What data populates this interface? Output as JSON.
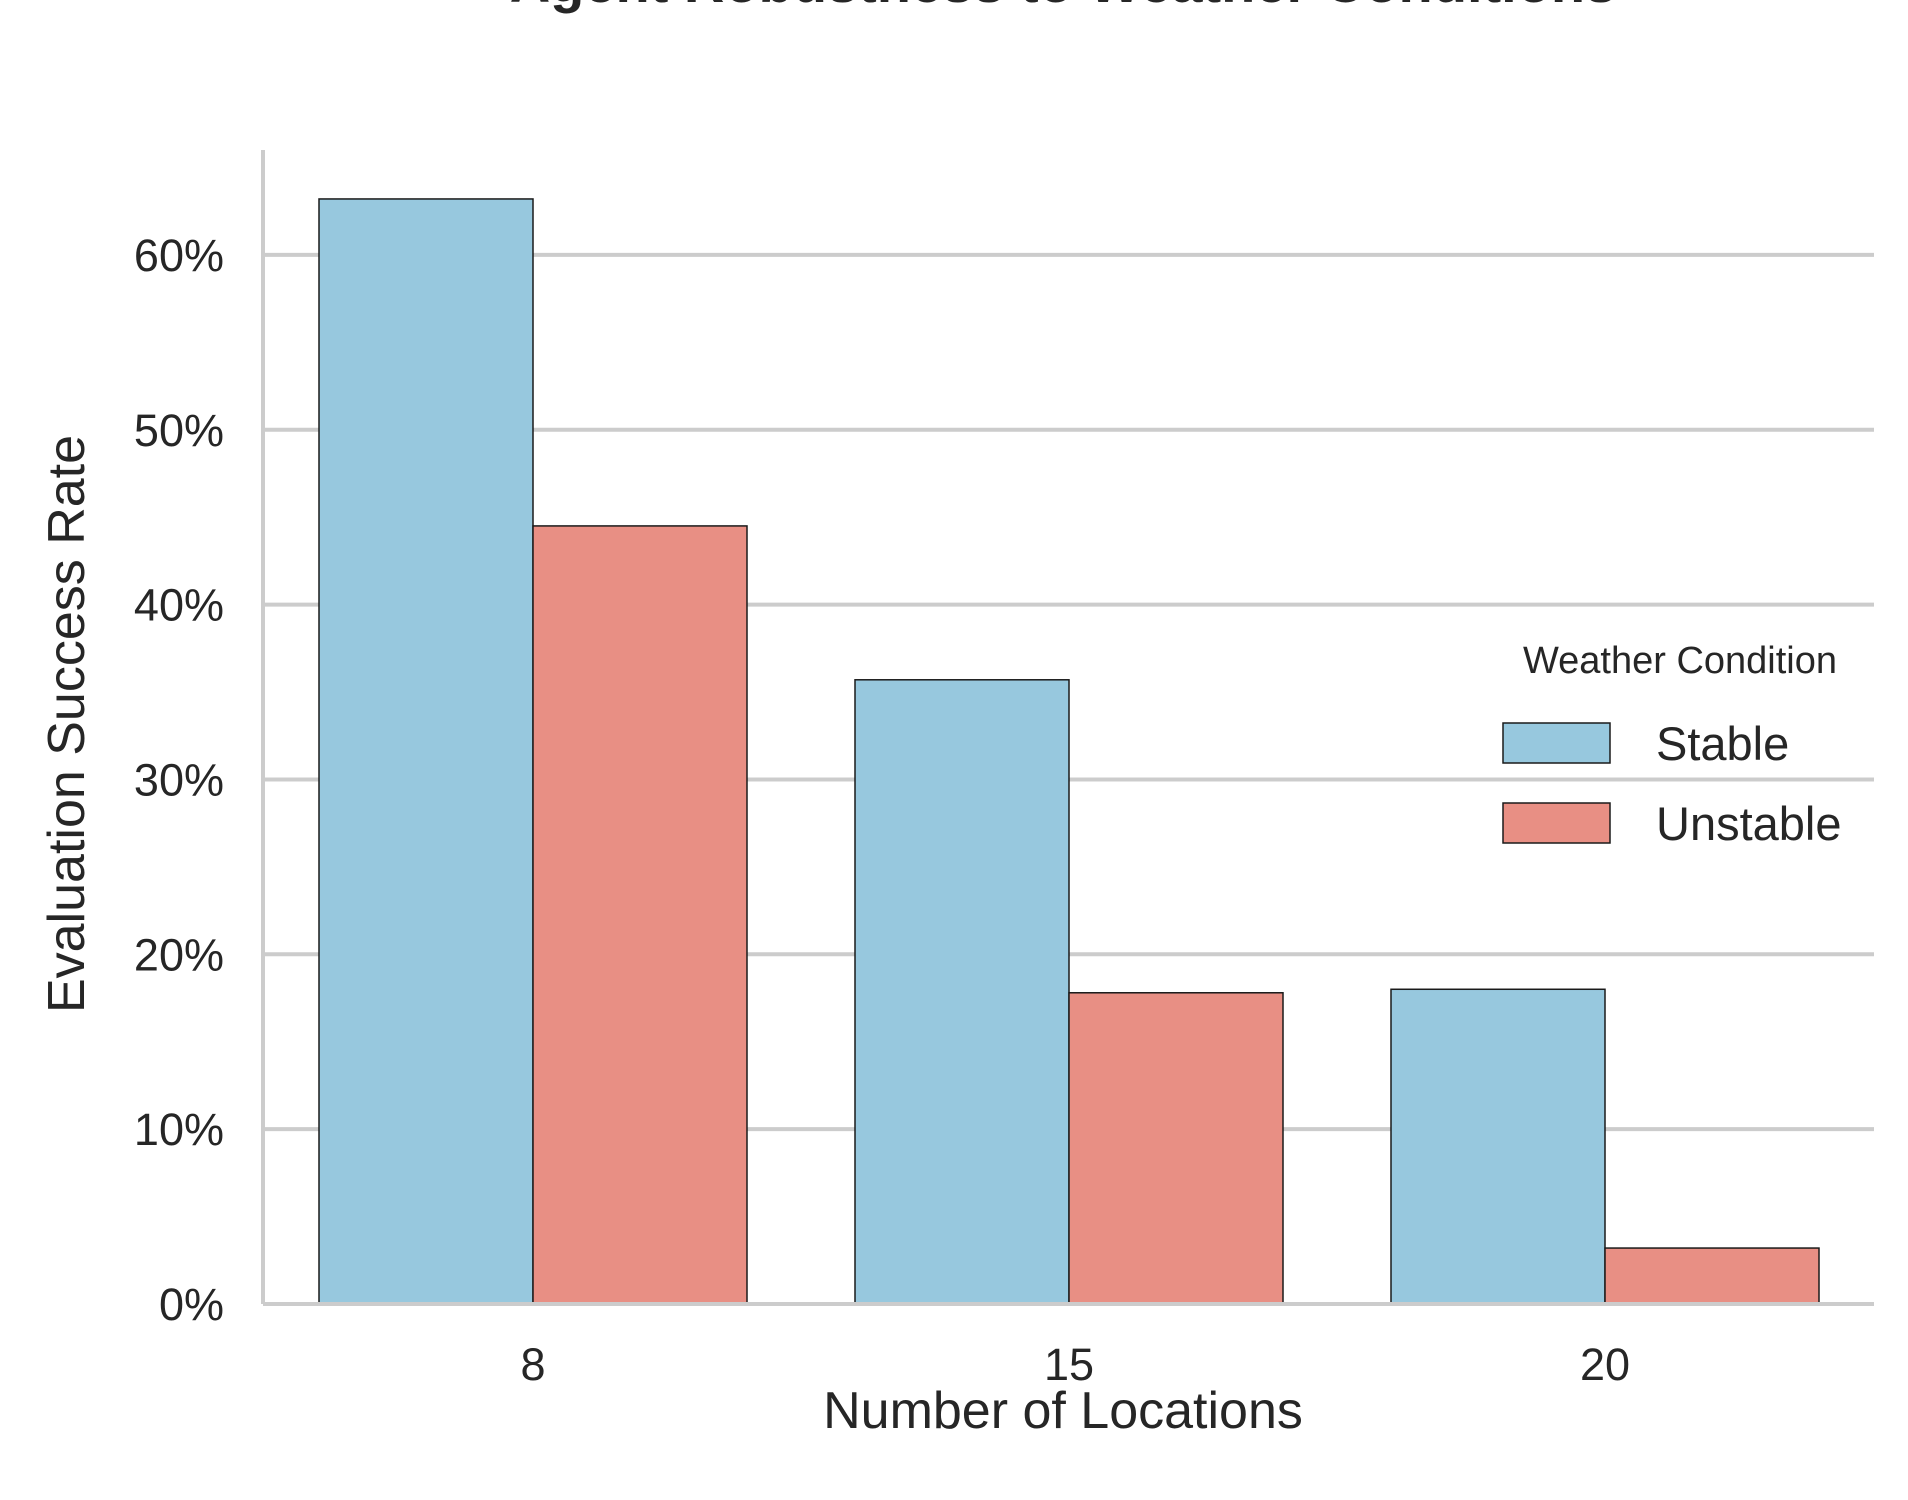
{
  "chart_data": {
    "type": "bar",
    "title": "Agent Robustness to Weather Conditions",
    "xlabel": "Number of Locations",
    "ylabel": "Evaluation Success Rate",
    "categories": [
      "8",
      "15",
      "20"
    ],
    "series": [
      {
        "name": "Stable",
        "color": "#97C8DE",
        "values": [
          0.632,
          0.357,
          0.18
        ]
      },
      {
        "name": "Unstable",
        "color": "#E88F84",
        "values": [
          0.445,
          0.178,
          0.032
        ]
      }
    ],
    "ylim": [
      0,
      0.66
    ],
    "yticks": [
      0,
      0.1,
      0.2,
      0.3,
      0.4,
      0.5,
      0.6
    ],
    "ytick_labels": [
      "0%",
      "10%",
      "20%",
      "30%",
      "40%",
      "50%",
      "60%"
    ],
    "grid": "horizontal",
    "legend": {
      "title": "Weather Condition",
      "position": "center-right"
    },
    "colors": {
      "grid": "#CCCCCC",
      "axis": "#CCCCCC",
      "bar_edge": "#1A1A1A",
      "text": "#262626"
    }
  }
}
